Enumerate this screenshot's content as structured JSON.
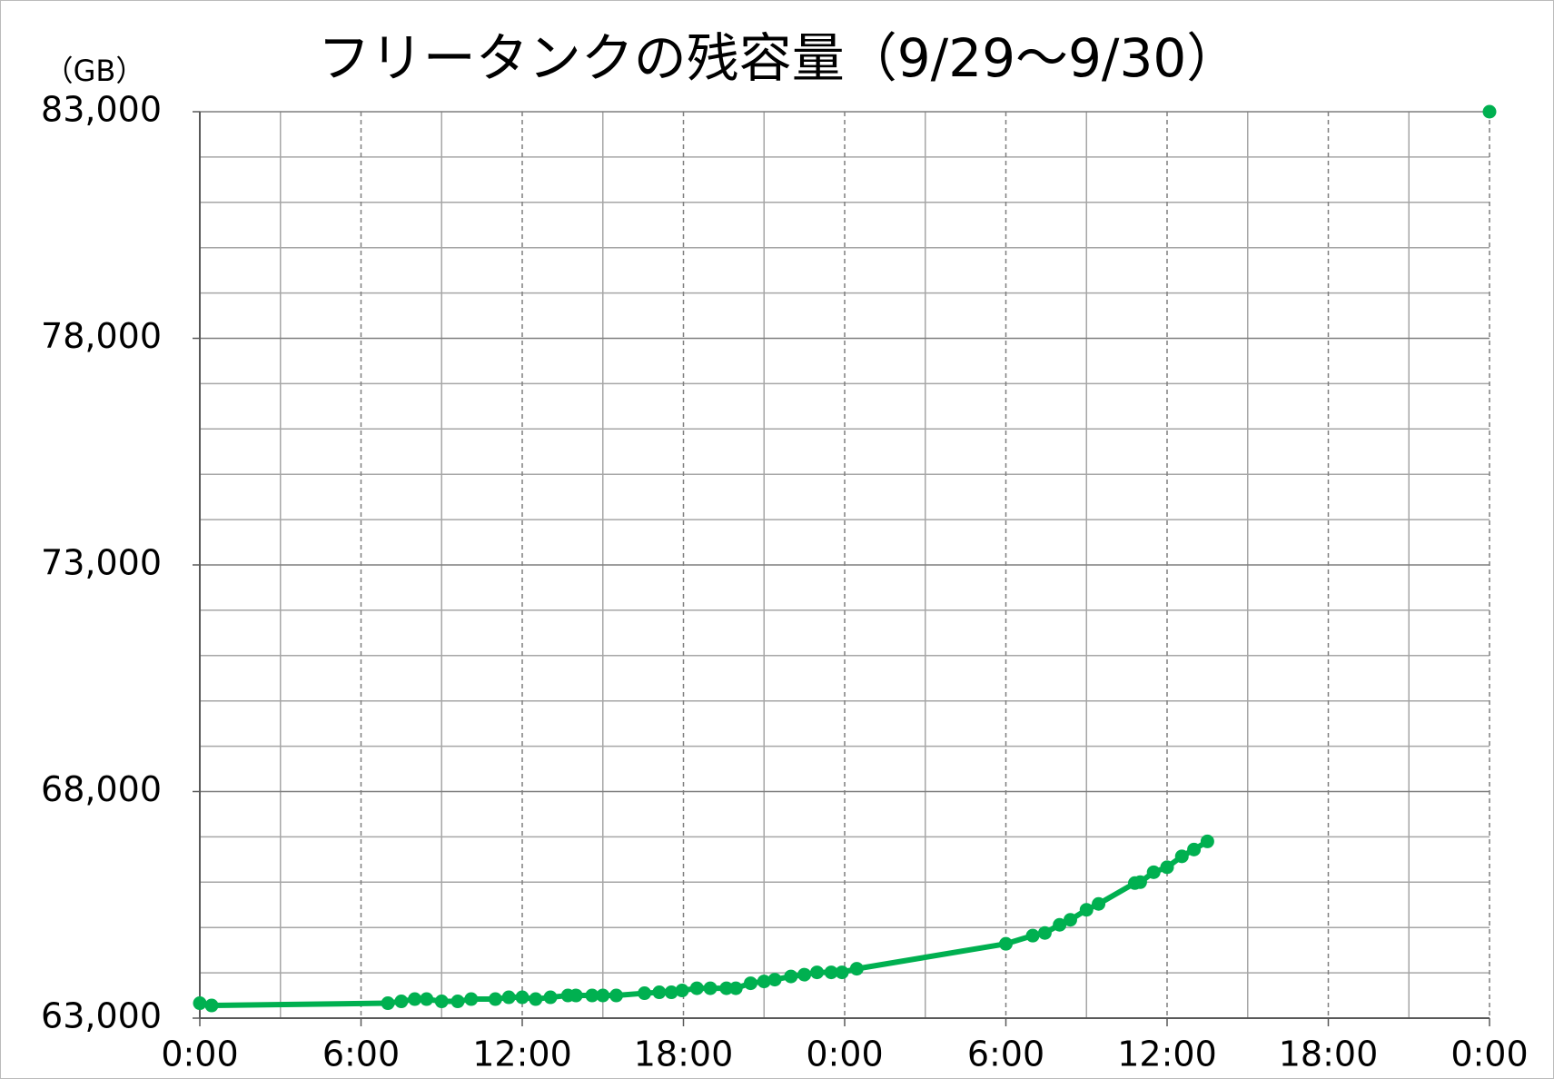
{
  "chart_data": {
    "type": "line",
    "title": "フリータンクの残容量（9/29～9/30）",
    "y_unit": "（GB）",
    "xlim": [
      0,
      48
    ],
    "xticks": [
      {
        "value": 0,
        "label": "0:00"
      },
      {
        "value": 6,
        "label": "6:00"
      },
      {
        "value": 12,
        "label": "12:00"
      },
      {
        "value": 18,
        "label": "18:00"
      },
      {
        "value": 24,
        "label": "0:00"
      },
      {
        "value": 30,
        "label": "6:00"
      },
      {
        "value": 36,
        "label": "12:00"
      },
      {
        "value": 42,
        "label": "18:00"
      },
      {
        "value": 48,
        "label": "0:00"
      }
    ],
    "ylim": [
      63000,
      83000
    ],
    "yticks": [
      {
        "value": 63000,
        "label": "63,000"
      },
      {
        "value": 68000,
        "label": "68,000"
      },
      {
        "value": 73000,
        "label": "73,000"
      },
      {
        "value": 78000,
        "label": "78,000"
      },
      {
        "value": 83000,
        "label": "83,000"
      }
    ],
    "grid": true,
    "series": [
      {
        "color": "#00b050",
        "x": [
          0,
          0.44,
          7.0,
          7.5,
          8.0,
          8.44,
          9.0,
          9.6,
          10.1,
          11.0,
          11.5,
          12.0,
          12.5,
          13.05,
          13.7,
          14.0,
          14.6,
          15.0,
          15.5,
          16.55,
          17.1,
          17.55,
          17.95,
          18.5,
          19.0,
          19.6,
          19.95,
          20.5,
          21.0,
          21.4,
          22.0,
          22.5,
          22.97,
          23.5,
          23.9,
          24.45,
          30.0,
          31.0,
          31.45,
          32.0,
          32.4,
          33.0,
          33.45,
          34.8,
          35.0,
          35.5,
          36.0,
          36.55,
          37.0,
          37.5,
          null,
          48
        ],
        "values": [
          63330,
          63280,
          63330,
          63370,
          63420,
          63420,
          63370,
          63370,
          63420,
          63420,
          63460,
          63460,
          63420,
          63460,
          63500,
          63500,
          63500,
          63500,
          63500,
          63550,
          63570,
          63570,
          63610,
          63660,
          63660,
          63660,
          63660,
          63770,
          63810,
          63850,
          63920,
          63960,
          64010,
          64010,
          64010,
          64090,
          64640,
          64820,
          64880,
          65060,
          65170,
          65390,
          65520,
          65980,
          66000,
          66220,
          66330,
          66570,
          66720,
          66900,
          null,
          83000
        ]
      }
    ]
  }
}
